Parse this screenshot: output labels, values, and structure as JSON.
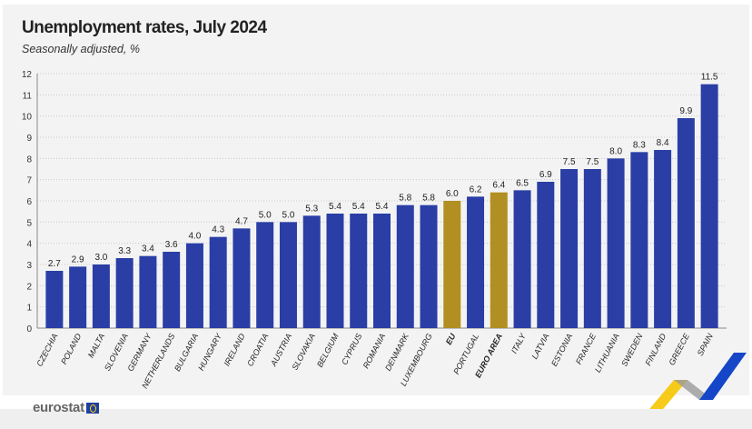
{
  "chart_data": {
    "type": "bar",
    "title": "Unemployment rates, July 2024",
    "subtitle": "Seasonally adjusted, %",
    "categories": [
      "CZECHIA",
      "POLAND",
      "MALTA",
      "SLOVENIA",
      "GERMANY",
      "NETHERLANDS",
      "BULGARIA",
      "HUNGARY",
      "IRELAND",
      "CROATIA",
      "AUSTRIA",
      "SLOVAKIA",
      "BELGIUM",
      "CYPRUS",
      "ROMANIA",
      "DENMARK",
      "LUXEMBOURG",
      "EU",
      "PORTUGAL",
      "EURO AREA",
      "ITALY",
      "LATVIA",
      "ESTONIA",
      "FRANCE",
      "LITHUANIA",
      "SWEDEN",
      "FINLAND",
      "GREECE",
      "SPAIN"
    ],
    "values": [
      2.7,
      2.9,
      3.0,
      3.3,
      3.4,
      3.6,
      4.0,
      4.3,
      4.7,
      5.0,
      5.0,
      5.3,
      5.4,
      5.4,
      5.4,
      5.8,
      5.8,
      6.0,
      6.2,
      6.4,
      6.5,
      6.9,
      7.5,
      7.5,
      8.0,
      8.3,
      8.4,
      9.9,
      11.5
    ],
    "highlighted": [
      "EU",
      "EURO AREA"
    ],
    "ylim": [
      0,
      12
    ],
    "yticks": [
      0,
      1,
      2,
      3,
      4,
      5,
      6,
      7,
      8,
      9,
      10,
      11,
      12
    ],
    "grid": true,
    "colors": {
      "bar": "#2a3ea6",
      "highlight": "#b28f22"
    }
  },
  "footer": {
    "logo_text": "eurostat"
  }
}
